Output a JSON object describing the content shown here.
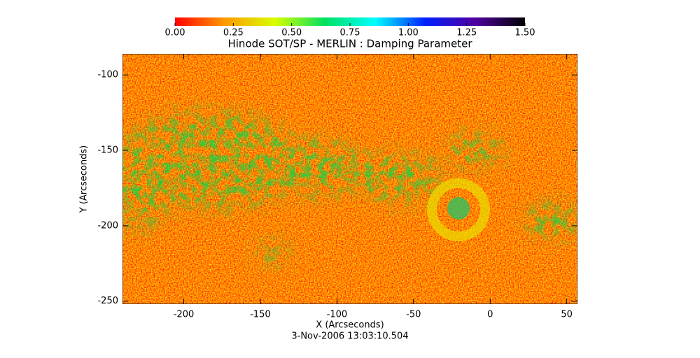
{
  "chart_data": {
    "type": "heatmap",
    "title": "Hinode SOT/SP - MERLIN : Damping Parameter",
    "xlabel": "X (Arcseconds)",
    "ylabel": "Y (Arcseconds)",
    "date": "3-Nov-2006 13:03:10.504",
    "xlim": [
      -240,
      57
    ],
    "xticks": [
      -200,
      -150,
      -100,
      -50,
      0,
      50
    ],
    "ylim": [
      -252,
      -86
    ],
    "yticks": [
      -250,
      -200,
      -150,
      -100
    ],
    "colorbar": {
      "lim": [
        0,
        1.5
      ],
      "ticks": [
        {
          "value": 0,
          "label": "0.00"
        },
        {
          "value": 0.25,
          "label": "0.25"
        },
        {
          "value": 0.5,
          "label": "0.50"
        },
        {
          "value": 0.75,
          "label": "0.75"
        },
        {
          "value": 1,
          "label": "1.00"
        },
        {
          "value": 1.25,
          "label": "1.25"
        },
        {
          "value": 1.5,
          "label": "1.50"
        }
      ],
      "colors": [
        "#ff0000",
        "#ff9a00",
        "#d8ff00",
        "#00e060",
        "#00ffff",
        "#0020ff",
        "#5000a0",
        "#000000"
      ]
    }
  }
}
